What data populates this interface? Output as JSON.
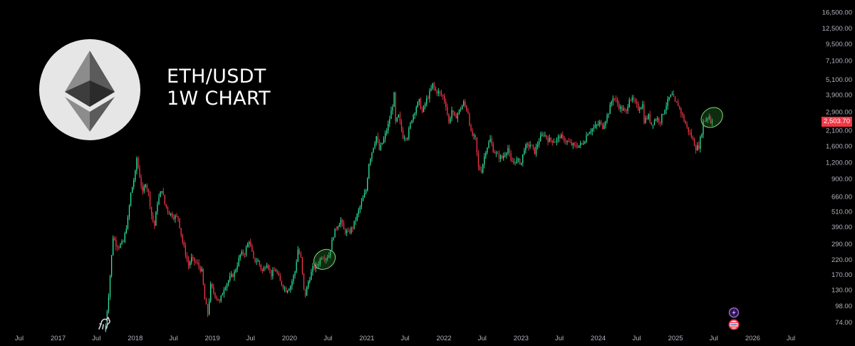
{
  "chart_data": {
    "type": "candlestick",
    "title_lines": [
      "ETH/USDT",
      "1W CHART"
    ],
    "scale": "log",
    "ylim": [
      66,
      20500
    ],
    "y_ticks": [
      {
        "value": 16500,
        "label": "16,500.00"
      },
      {
        "value": 12500,
        "label": "12,500.00"
      },
      {
        "value": 9500,
        "label": "9,500.00"
      },
      {
        "value": 7100,
        "label": "7,100.00"
      },
      {
        "value": 5100,
        "label": "5,100.00"
      },
      {
        "value": 3900,
        "label": "3,900.00"
      },
      {
        "value": 2900,
        "label": "2,900.00"
      },
      {
        "value": 2100,
        "label": "2,100.00"
      },
      {
        "value": 1600,
        "label": "1,600.00"
      },
      {
        "value": 1200,
        "label": "1,200.00"
      },
      {
        "value": 900,
        "label": "900.00"
      },
      {
        "value": 660,
        "label": "660.00"
      },
      {
        "value": 510,
        "label": "510.00"
      },
      {
        "value": 390,
        "label": "390.00"
      },
      {
        "value": 290,
        "label": "290.00"
      },
      {
        "value": 220,
        "label": "220.00"
      },
      {
        "value": 170,
        "label": "170.00"
      },
      {
        "value": 130,
        "label": "130.00"
      },
      {
        "value": 98,
        "label": "98.00"
      },
      {
        "value": 74,
        "label": "74.00"
      }
    ],
    "x_ticks": [
      {
        "date": "2016-07-01",
        "label": "Jul"
      },
      {
        "date": "2017-01-01",
        "label": "2017"
      },
      {
        "date": "2017-07-01",
        "label": "Jul"
      },
      {
        "date": "2018-01-01",
        "label": "2018"
      },
      {
        "date": "2018-07-01",
        "label": "Jul"
      },
      {
        "date": "2019-01-01",
        "label": "2019"
      },
      {
        "date": "2019-07-01",
        "label": "Jul"
      },
      {
        "date": "2020-01-01",
        "label": "2020"
      },
      {
        "date": "2020-07-01",
        "label": "Jul"
      },
      {
        "date": "2021-01-01",
        "label": "2021"
      },
      {
        "date": "2021-07-01",
        "label": "Jul"
      },
      {
        "date": "2022-01-01",
        "label": "2022"
      },
      {
        "date": "2022-07-01",
        "label": "Jul"
      },
      {
        "date": "2023-01-01",
        "label": "2023"
      },
      {
        "date": "2023-07-01",
        "label": "Jul"
      },
      {
        "date": "2024-01-01",
        "label": "2024"
      },
      {
        "date": "2024-07-01",
        "label": "Jul"
      },
      {
        "date": "2025-01-01",
        "label": "2025"
      },
      {
        "date": "2025-07-01",
        "label": "Jul"
      },
      {
        "date": "2026-01-01",
        "label": "2026"
      },
      {
        "date": "2026-07-01",
        "label": "Jul"
      }
    ],
    "x_range": [
      "2016-04-01",
      "2026-10-20"
    ],
    "current_price": {
      "value": 2503.7,
      "label": "2,503.70"
    },
    "colors": {
      "up": "#26a69a",
      "up_bright": "#2ee59d",
      "down": "#f23645",
      "background": "#000000",
      "axis_text": "#b2b5be",
      "price_tag": "#f23645",
      "highlight": "#2f7d2f"
    },
    "highlights": [
      {
        "date": "2020-06-15",
        "value": 222,
        "shape": "ellipse"
      },
      {
        "date": "2025-06-22",
        "value": 2640,
        "shape": "ellipse"
      }
    ],
    "price_path": [
      [
        "2017-08-14",
        70
      ],
      [
        "2017-08-28",
        120
      ],
      [
        "2017-09-18",
        330
      ],
      [
        "2017-10-02",
        290
      ],
      [
        "2017-10-16",
        280
      ],
      [
        "2017-11-06",
        300
      ],
      [
        "2017-11-27",
        450
      ],
      [
        "2017-12-11",
        700
      ],
      [
        "2018-01-01",
        1000
      ],
      [
        "2018-01-08",
        1300
      ],
      [
        "2018-01-15",
        1100
      ],
      [
        "2018-01-29",
        820
      ],
      [
        "2018-02-05",
        700
      ],
      [
        "2018-02-19",
        850
      ],
      [
        "2018-03-05",
        700
      ],
      [
        "2018-03-19",
        480
      ],
      [
        "2018-04-02",
        400
      ],
      [
        "2018-04-16",
        600
      ],
      [
        "2018-05-07",
        760
      ],
      [
        "2018-05-21",
        580
      ],
      [
        "2018-06-11",
        500
      ],
      [
        "2018-07-02",
        470
      ],
      [
        "2018-07-23",
        460
      ],
      [
        "2018-08-13",
        300
      ],
      [
        "2018-09-10",
        200
      ],
      [
        "2018-09-24",
        225
      ],
      [
        "2018-10-22",
        205
      ],
      [
        "2018-11-12",
        180
      ],
      [
        "2018-11-26",
        110
      ],
      [
        "2018-12-10",
        86
      ],
      [
        "2018-12-24",
        140
      ],
      [
        "2019-01-07",
        125
      ],
      [
        "2019-02-04",
        105
      ],
      [
        "2019-02-25",
        135
      ],
      [
        "2019-03-25",
        160
      ],
      [
        "2019-04-15",
        175
      ],
      [
        "2019-05-13",
        240
      ],
      [
        "2019-06-03",
        250
      ],
      [
        "2019-06-24",
        310
      ],
      [
        "2019-07-15",
        220
      ],
      [
        "2019-08-05",
        215
      ],
      [
        "2019-08-26",
        180
      ],
      [
        "2019-09-16",
        210
      ],
      [
        "2019-10-07",
        170
      ],
      [
        "2019-10-28",
        185
      ],
      [
        "2019-11-18",
        150
      ],
      [
        "2019-12-16",
        130
      ],
      [
        "2020-01-06",
        140
      ],
      [
        "2020-01-27",
        180
      ],
      [
        "2020-02-10",
        265
      ],
      [
        "2020-02-24",
        225
      ],
      [
        "2020-03-09",
        130
      ],
      [
        "2020-03-16",
        120
      ],
      [
        "2020-03-30",
        150
      ],
      [
        "2020-04-20",
        190
      ],
      [
        "2020-05-11",
        200
      ],
      [
        "2020-06-01",
        235
      ],
      [
        "2020-06-22",
        230
      ],
      [
        "2020-07-06",
        240
      ],
      [
        "2020-07-27",
        340
      ],
      [
        "2020-08-10",
        390
      ],
      [
        "2020-08-31",
        440
      ],
      [
        "2020-09-14",
        370
      ],
      [
        "2020-10-05",
        350
      ],
      [
        "2020-10-26",
        390
      ],
      [
        "2020-11-16",
        480
      ],
      [
        "2020-12-07",
        600
      ],
      [
        "2020-12-28",
        740
      ],
      [
        "2021-01-11",
        1200
      ],
      [
        "2021-02-01",
        1600
      ],
      [
        "2021-02-15",
        1900
      ],
      [
        "2021-03-01",
        1500
      ],
      [
        "2021-03-22",
        1800
      ],
      [
        "2021-04-12",
        2300
      ],
      [
        "2021-05-03",
        3300
      ],
      [
        "2021-05-10",
        3900
      ],
      [
        "2021-05-17",
        2400
      ],
      [
        "2021-05-31",
        2700
      ],
      [
        "2021-06-21",
        1900
      ],
      [
        "2021-07-12",
        1900
      ],
      [
        "2021-08-02",
        2600
      ],
      [
        "2021-08-23",
        3200
      ],
      [
        "2021-09-06",
        3500
      ],
      [
        "2021-09-20",
        2900
      ],
      [
        "2021-10-11",
        3600
      ],
      [
        "2021-11-01",
        4300
      ],
      [
        "2021-11-08",
        4700
      ],
      [
        "2021-11-22",
        4200
      ],
      [
        "2021-12-06",
        4100
      ],
      [
        "2021-12-27",
        3800
      ],
      [
        "2022-01-10",
        3300
      ],
      [
        "2022-01-24",
        2400
      ],
      [
        "2022-02-07",
        3000
      ],
      [
        "2022-02-21",
        2600
      ],
      [
        "2022-03-21",
        3100
      ],
      [
        "2022-04-04",
        3400
      ],
      [
        "2022-04-25",
        2900
      ],
      [
        "2022-05-09",
        2000
      ],
      [
        "2022-05-30",
        1800
      ],
      [
        "2022-06-13",
        1100
      ],
      [
        "2022-06-27",
        1050
      ],
      [
        "2022-07-18",
        1500
      ],
      [
        "2022-08-08",
        1800
      ],
      [
        "2022-08-22",
        1500
      ],
      [
        "2022-09-12",
        1350
      ],
      [
        "2022-10-03",
        1300
      ],
      [
        "2022-10-31",
        1550
      ],
      [
        "2022-11-14",
        1200
      ],
      [
        "2022-12-12",
        1250
      ],
      [
        "2023-01-02",
        1200
      ],
      [
        "2023-01-16",
        1550
      ],
      [
        "2023-02-13",
        1650
      ],
      [
        "2023-03-06",
        1450
      ],
      [
        "2023-03-27",
        1780
      ],
      [
        "2023-04-17",
        2000
      ],
      [
        "2023-05-08",
        1800
      ],
      [
        "2023-06-12",
        1750
      ],
      [
        "2023-07-03",
        1900
      ],
      [
        "2023-08-14",
        1700
      ],
      [
        "2023-09-11",
        1600
      ],
      [
        "2023-10-16",
        1650
      ],
      [
        "2023-10-30",
        1800
      ],
      [
        "2023-11-13",
        2050
      ],
      [
        "2023-12-11",
        2200
      ],
      [
        "2024-01-08",
        2400
      ],
      [
        "2024-01-22",
        2250
      ],
      [
        "2024-02-19",
        2900
      ],
      [
        "2024-03-11",
        3800
      ],
      [
        "2024-03-25",
        3500
      ],
      [
        "2024-04-15",
        3100
      ],
      [
        "2024-05-13",
        2900
      ],
      [
        "2024-05-27",
        3750
      ],
      [
        "2024-06-17",
        3500
      ],
      [
        "2024-07-08",
        3100
      ],
      [
        "2024-07-29",
        3300
      ],
      [
        "2024-08-05",
        2500
      ],
      [
        "2024-08-26",
        2700
      ],
      [
        "2024-09-09",
        2350
      ],
      [
        "2024-09-30",
        2600
      ],
      [
        "2024-10-21",
        2500
      ],
      [
        "2024-11-11",
        3100
      ],
      [
        "2024-12-02",
        3700
      ],
      [
        "2024-12-16",
        3900
      ],
      [
        "2024-12-30",
        3400
      ],
      [
        "2025-01-13",
        3300
      ],
      [
        "2025-02-03",
        2700
      ],
      [
        "2025-02-24",
        2200
      ],
      [
        "2025-03-17",
        1900
      ],
      [
        "2025-04-07",
        1550
      ],
      [
        "2025-04-21",
        1600
      ],
      [
        "2025-05-05",
        2050
      ],
      [
        "2025-05-12",
        2450
      ],
      [
        "2025-05-26",
        2600
      ],
      [
        "2025-06-09",
        2700
      ],
      [
        "2025-06-16",
        2450
      ],
      [
        "2025-06-23",
        2503.7
      ]
    ]
  }
}
